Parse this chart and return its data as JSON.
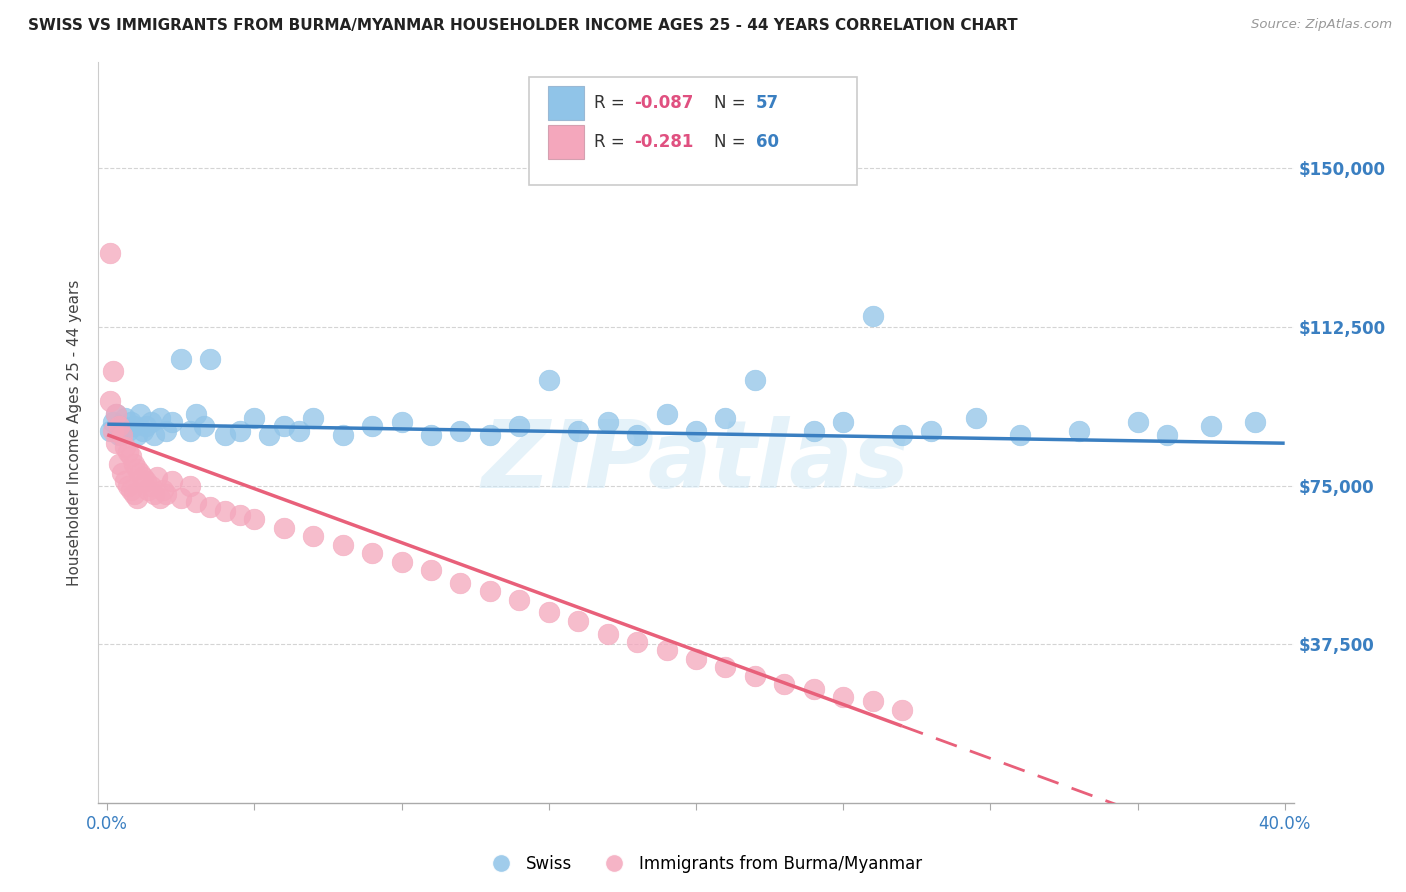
{
  "title": "SWISS VS IMMIGRANTS FROM BURMA/MYANMAR HOUSEHOLDER INCOME AGES 25 - 44 YEARS CORRELATION CHART",
  "source": "Source: ZipAtlas.com",
  "ylabel": "Householder Income Ages 25 - 44 years",
  "xlim": [
    0.0,
    0.4
  ],
  "ylim": [
    0,
    175000
  ],
  "yticks": [
    37500,
    75000,
    112500,
    150000
  ],
  "ytick_labels": [
    "$37,500",
    "$75,000",
    "$112,500",
    "$150,000"
  ],
  "legend_r_swiss": "-0.087",
  "legend_n_swiss": "57",
  "legend_r_burma": "-0.281",
  "legend_n_burma": "60",
  "swiss_color": "#90c4e8",
  "burma_color": "#f4a7bc",
  "trendline_swiss_color": "#3a7fc1",
  "trendline_burma_color": "#e8607a",
  "watermark": "ZIPatlas",
  "background_color": "#ffffff",
  "grid_color": "#d0d0d0",
  "swiss_x": [
    0.001,
    0.002,
    0.003,
    0.004,
    0.005,
    0.006,
    0.007,
    0.008,
    0.009,
    0.01,
    0.011,
    0.012,
    0.013,
    0.015,
    0.016,
    0.018,
    0.02,
    0.022,
    0.025,
    0.028,
    0.03,
    0.033,
    0.035,
    0.04,
    0.045,
    0.05,
    0.055,
    0.06,
    0.065,
    0.07,
    0.08,
    0.09,
    0.1,
    0.11,
    0.12,
    0.13,
    0.14,
    0.15,
    0.16,
    0.17,
    0.18,
    0.19,
    0.2,
    0.21,
    0.22,
    0.24,
    0.25,
    0.26,
    0.27,
    0.28,
    0.295,
    0.31,
    0.33,
    0.35,
    0.36,
    0.375,
    0.39
  ],
  "swiss_y": [
    88000,
    90000,
    92000,
    87000,
    89000,
    91000,
    88000,
    90000,
    89000,
    87000,
    92000,
    88000,
    89000,
    90000,
    87000,
    91000,
    88000,
    90000,
    105000,
    88000,
    92000,
    89000,
    105000,
    87000,
    88000,
    91000,
    87000,
    89000,
    88000,
    91000,
    87000,
    89000,
    90000,
    87000,
    88000,
    87000,
    89000,
    100000,
    88000,
    90000,
    87000,
    92000,
    88000,
    91000,
    100000,
    88000,
    90000,
    115000,
    87000,
    88000,
    91000,
    87000,
    88000,
    90000,
    87000,
    89000,
    90000
  ],
  "burma_x": [
    0.001,
    0.001,
    0.002,
    0.002,
    0.003,
    0.003,
    0.004,
    0.004,
    0.005,
    0.005,
    0.006,
    0.006,
    0.007,
    0.007,
    0.008,
    0.008,
    0.009,
    0.009,
    0.01,
    0.01,
    0.011,
    0.012,
    0.013,
    0.014,
    0.015,
    0.016,
    0.017,
    0.018,
    0.019,
    0.02,
    0.022,
    0.025,
    0.028,
    0.03,
    0.035,
    0.04,
    0.045,
    0.05,
    0.06,
    0.07,
    0.08,
    0.09,
    0.1,
    0.11,
    0.12,
    0.13,
    0.14,
    0.15,
    0.16,
    0.17,
    0.18,
    0.19,
    0.2,
    0.21,
    0.22,
    0.23,
    0.24,
    0.25,
    0.26,
    0.27
  ],
  "burma_y": [
    130000,
    95000,
    102000,
    88000,
    92000,
    85000,
    89000,
    80000,
    87000,
    78000,
    84000,
    76000,
    83000,
    75000,
    82000,
    74000,
    80000,
    73000,
    79000,
    72000,
    78000,
    77000,
    76000,
    74000,
    75000,
    73000,
    77000,
    72000,
    74000,
    73000,
    76000,
    72000,
    75000,
    71000,
    70000,
    69000,
    68000,
    67000,
    65000,
    63000,
    61000,
    59000,
    57000,
    55000,
    52000,
    50000,
    48000,
    45000,
    43000,
    40000,
    38000,
    36000,
    34000,
    32000,
    30000,
    28000,
    27000,
    25000,
    24000,
    22000
  ],
  "xtick_positions": [
    0.0,
    0.05,
    0.1,
    0.15,
    0.2,
    0.25,
    0.3,
    0.35,
    0.4
  ]
}
